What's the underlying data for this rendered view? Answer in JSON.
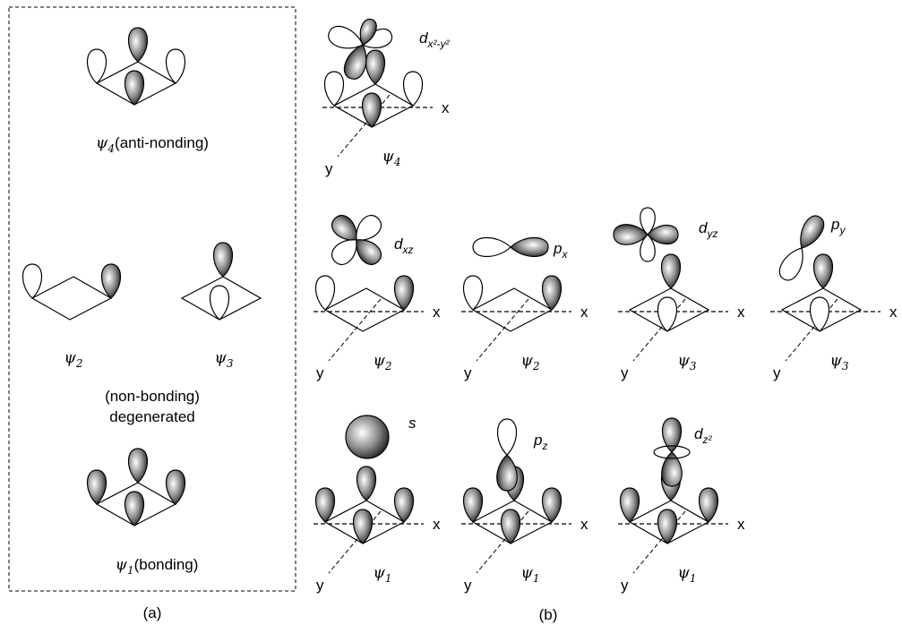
{
  "panel_a": {
    "caption": "(a)",
    "psi4": {
      "symbol": "ψ",
      "index": "4",
      "text": "(anti-nonding)"
    },
    "psi2": {
      "symbol": "ψ",
      "index": "2"
    },
    "psi3": {
      "symbol": "ψ",
      "index": "3"
    },
    "degenerate_note": [
      "(non-bonding)",
      "degenerated"
    ],
    "psi1": {
      "symbol": "ψ",
      "index": "1",
      "text": "(bonding)"
    }
  },
  "panel_b": {
    "caption": "(b)",
    "diagrams": [
      {
        "orbital": {
          "letter": "d",
          "sub": "x²-y²"
        },
        "psi": {
          "symbol": "ψ",
          "index": "4"
        },
        "x_axis": "x",
        "y_axis": "y"
      },
      {
        "orbital": {
          "letter": "d",
          "sub": "xz"
        },
        "psi": {
          "symbol": "ψ",
          "index": "2"
        },
        "x_axis": "x",
        "y_axis": "y"
      },
      {
        "orbital": {
          "letter": "p",
          "sub": "x"
        },
        "psi": {
          "symbol": "ψ",
          "index": "2"
        },
        "x_axis": "x",
        "y_axis": "y"
      },
      {
        "orbital": {
          "letter": "d",
          "sub": "yz"
        },
        "psi": {
          "symbol": "ψ",
          "index": "3"
        },
        "x_axis": "x",
        "y_axis": "y"
      },
      {
        "orbital": {
          "letter": "p",
          "sub": "y"
        },
        "psi": {
          "symbol": "ψ",
          "index": "3"
        },
        "x_axis": "x",
        "y_axis": "y"
      },
      {
        "orbital": {
          "letter": "s"
        },
        "psi": {
          "symbol": "ψ",
          "index": "1"
        },
        "x_axis": "x",
        "y_axis": "y"
      },
      {
        "orbital": {
          "letter": "p",
          "sub": "z"
        },
        "psi": {
          "symbol": "ψ",
          "index": "1"
        },
        "x_axis": "x",
        "y_axis": "y"
      },
      {
        "orbital": {
          "letter": "d",
          "sub": "z²"
        },
        "psi": {
          "symbol": "ψ",
          "index": "1"
        },
        "x_axis": "x",
        "y_axis": "y"
      }
    ]
  }
}
